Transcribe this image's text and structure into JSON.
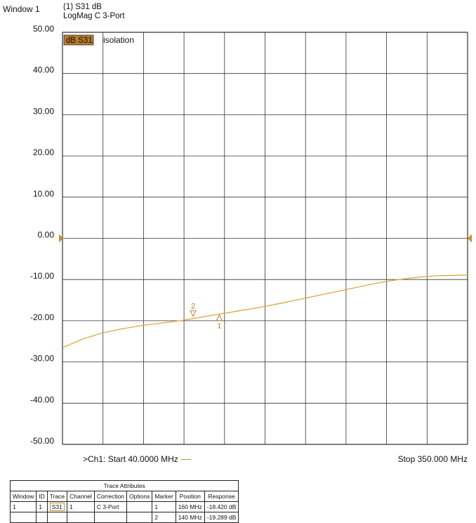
{
  "window": {
    "title": "Window 1"
  },
  "trace_header": {
    "line1": "(1) S31 dB",
    "line2": "LogMag C  3-Port"
  },
  "trace_badge": {
    "label": "dB S31",
    "description": "isolation"
  },
  "colors": {
    "trace": "#e0a640",
    "badge": "#b87a2a",
    "grid": "#333333"
  },
  "footer": {
    "start": ">Ch1: Start  40.0000 MHz",
    "stop": "Stop  350.000 MHz"
  },
  "chart_data": {
    "type": "line",
    "title": "",
    "xlabel": "",
    "ylabel": "",
    "xlim": [
      40,
      350
    ],
    "ylim": [
      -50,
      50
    ],
    "yticks": [
      "50.00",
      "40.00",
      "30.00",
      "20.00",
      "10.00",
      "0.00",
      "-10.00",
      "-20.00",
      "-30.00",
      "-40.00",
      "-50.00"
    ],
    "grid": true,
    "series": [
      {
        "x": [
          40,
          55,
          70,
          85,
          100,
          115,
          130,
          145,
          160,
          175,
          190,
          205,
          220,
          235,
          250,
          265,
          280,
          295,
          310,
          325,
          340,
          350
        ],
        "y": [
          -26.5,
          -24.5,
          -23.0,
          -22.0,
          -21.2,
          -20.6,
          -20.0,
          -19.2,
          -18.4,
          -17.6,
          -16.8,
          -15.9,
          -14.9,
          -13.9,
          -12.9,
          -11.9,
          -10.9,
          -10.1,
          -9.5,
          -9.1,
          -9.0,
          -8.9
        ]
      }
    ],
    "markers": [
      {
        "id": "1",
        "x": 160,
        "y": -18.42
      },
      {
        "id": "2",
        "x": 140,
        "y": -19.289
      }
    ]
  },
  "table": {
    "caption": "Trace Attributes",
    "headers": [
      "Window",
      "ID",
      "Trace",
      "Channel",
      "Correction",
      "Options",
      "Marker",
      "Position",
      "Response"
    ],
    "rows": [
      [
        "1",
        "1",
        "S31",
        "1",
        "C 3-Port",
        "",
        "1",
        "160 MHz",
        "-18.420 dB"
      ],
      [
        "",
        "",
        "",
        "",
        "",
        "",
        "2",
        "140 MHz",
        "-19.289 dB"
      ]
    ]
  }
}
